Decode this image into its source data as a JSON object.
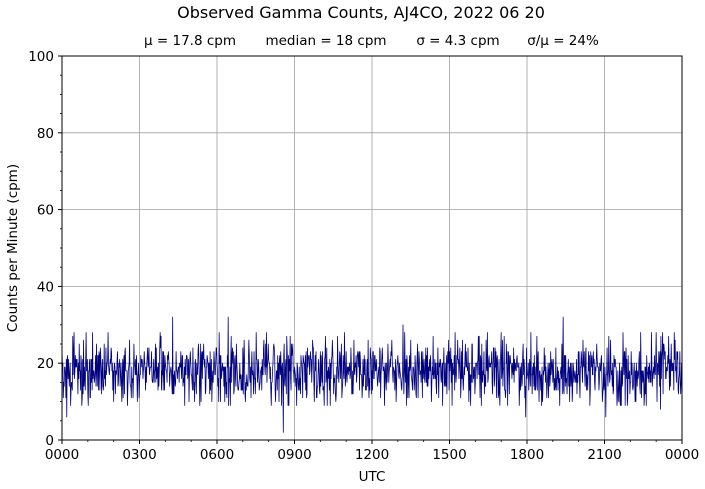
{
  "chart_data": {
    "type": "line",
    "title": "Observed Gamma Counts, AJ4CO, 2022 06 20",
    "subtitle": {
      "mean": "μ = 17.8 cpm",
      "median": "median = 18 cpm",
      "sigma": "σ = 4.3 cpm",
      "ratio": "σ/μ = 24%"
    },
    "xlabel": "UTC",
    "ylabel": "Counts per Minute (cpm)",
    "x_ticks": [
      "0000",
      "0300",
      "0600",
      "0900",
      "1200",
      "1500",
      "1800",
      "2100",
      "0000"
    ],
    "x_unit": "minutes since 0000 UTC",
    "xlim": [
      0,
      1440
    ],
    "y_ticks": [
      "0",
      "20",
      "40",
      "60",
      "80",
      "100"
    ],
    "ylim": [
      0,
      100
    ],
    "grid": true,
    "series": [
      {
        "color": "#000080",
        "sample_interval_minutes": 1,
        "summary": {
          "mean": 17.8,
          "median": 18,
          "sigma": 4.3
        },
        "notable_points": [
          {
            "x": 11,
            "y": 6
          },
          {
            "x": 28,
            "y": 28
          },
          {
            "x": 257,
            "y": 32
          },
          {
            "x": 386,
            "y": 32
          },
          {
            "x": 514,
            "y": 2
          },
          {
            "x": 792,
            "y": 30
          },
          {
            "x": 1077,
            "y": 6
          },
          {
            "x": 1164,
            "y": 32
          },
          {
            "x": 1263,
            "y": 6
          },
          {
            "x": 1390,
            "y": 8
          }
        ]
      }
    ]
  },
  "colors": {
    "series": "#000080",
    "grid": "#a0a0a0",
    "axes": "#000000"
  }
}
